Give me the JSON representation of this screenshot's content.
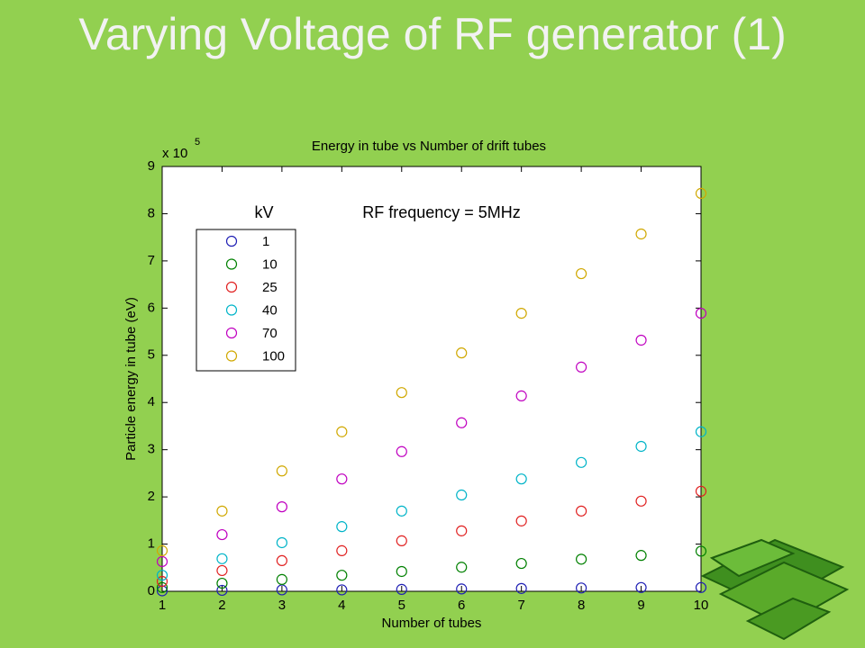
{
  "slide_title": "Varying Voltage of RF generator (1)",
  "chart_data": {
    "type": "scatter",
    "title": "Energy in tube vs Number of drift tubes",
    "x_label": "Number of tubes",
    "y_label": "Particle energy in tube (eV)",
    "y_multiplier": {
      "base": "x 10",
      "power": "5"
    },
    "annotations": [
      "kV",
      "RF frequency = 5MHz"
    ],
    "x": [
      1,
      2,
      3,
      4,
      5,
      6,
      7,
      8,
      9,
      10
    ],
    "xlim": [
      1,
      10
    ],
    "xticks": [
      1,
      2,
      3,
      4,
      5,
      6,
      7,
      8,
      9,
      10
    ],
    "ylim": [
      0,
      9
    ],
    "yticks": [
      0,
      1,
      2,
      3,
      4,
      5,
      6,
      7,
      8,
      9
    ],
    "legend": "upper left",
    "series": [
      {
        "name": "1",
        "color": "#1f1fb4",
        "values": [
          0.01,
          0.02,
          0.03,
          0.03,
          0.04,
          0.05,
          0.06,
          0.07,
          0.08,
          0.08
        ]
      },
      {
        "name": "10",
        "color": "#008000",
        "values": [
          0.08,
          0.17,
          0.25,
          0.34,
          0.42,
          0.51,
          0.59,
          0.68,
          0.76,
          0.85
        ]
      },
      {
        "name": "25",
        "color": "#e02020",
        "values": [
          0.21,
          0.44,
          0.65,
          0.86,
          1.07,
          1.28,
          1.49,
          1.7,
          1.91,
          2.12
        ]
      },
      {
        "name": "40",
        "color": "#00b4c8",
        "values": [
          0.34,
          0.69,
          1.03,
          1.37,
          1.7,
          2.04,
          2.38,
          2.73,
          3.07,
          3.38
        ]
      },
      {
        "name": "70",
        "color": "#c000c0",
        "values": [
          0.63,
          1.2,
          1.79,
          2.38,
          2.96,
          3.57,
          4.14,
          4.75,
          5.32,
          5.89
        ]
      },
      {
        "name": "100",
        "color": "#d0a800",
        "values": [
          0.86,
          1.7,
          2.55,
          3.38,
          4.21,
          5.05,
          5.89,
          6.73,
          7.57,
          8.43
        ]
      }
    ]
  }
}
